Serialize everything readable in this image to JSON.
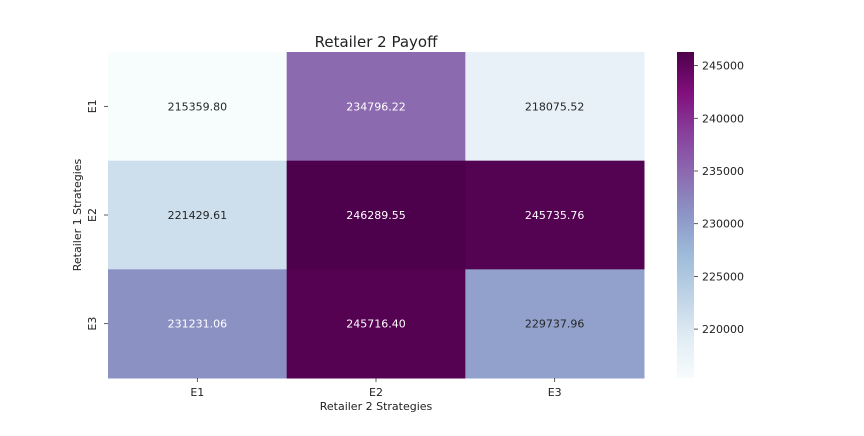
{
  "chart_data": {
    "type": "heatmap",
    "title": "Retailer 2 Payoff",
    "xlabel": "Retailer 2 Strategies",
    "ylabel": "Retailer 1 Strategies",
    "x_categories": [
      "E1",
      "E2",
      "E3"
    ],
    "y_categories": [
      "E1",
      "E2",
      "E3"
    ],
    "values": [
      [
        215359.8,
        234796.22,
        218075.52
      ],
      [
        221429.61,
        246289.55,
        245735.76
      ],
      [
        231231.06,
        245716.4,
        229737.96
      ]
    ],
    "value_labels": [
      [
        "215359.80",
        "234796.22",
        "218075.52"
      ],
      [
        "221429.61",
        "246289.55",
        "245735.76"
      ],
      [
        "231231.06",
        "245716.40",
        "229737.96"
      ]
    ],
    "colormap": "BuPu",
    "colorbar": {
      "range": [
        215359.8,
        246289.55
      ],
      "ticks": [
        220000,
        225000,
        230000,
        235000,
        240000,
        245000
      ],
      "tick_labels": [
        "220000",
        "225000",
        "230000",
        "235000",
        "240000",
        "245000"
      ]
    },
    "grid": false,
    "legend": "colorbar-right"
  }
}
